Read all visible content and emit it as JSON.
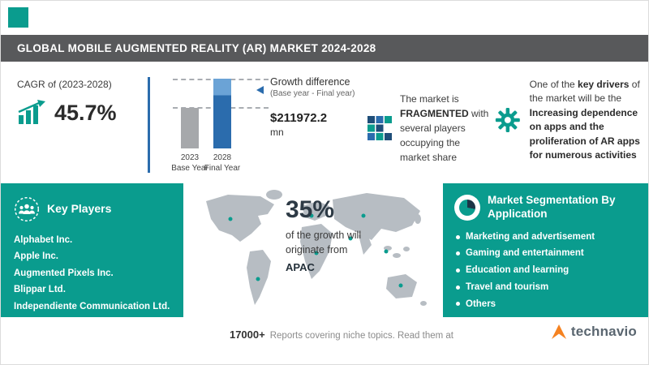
{
  "colors": {
    "teal": "#0a9c8e",
    "header_bg": "#58595b",
    "bar_gray": "#a6a8ab",
    "bar_blue": "#2b6cad",
    "bar_blue_light": "#6ba3d6",
    "orange": "#f58220",
    "wordmark": "#5a6670"
  },
  "header": {
    "title": "GLOBAL MOBILE AUGMENTED REALITY (AR) MARKET 2024-2028"
  },
  "cagr": {
    "label": "CAGR of (2023-2028)",
    "value": "45.7%"
  },
  "chart_data": {
    "type": "bar",
    "title": "Growth difference (Base year - Final year)",
    "categories": [
      "2023 Base Year",
      "2028 Final Year"
    ],
    "bars": [
      {
        "year": "2023",
        "label": "Base Year",
        "rel_height": 0.58
      },
      {
        "year": "2028",
        "label": "Final Year",
        "rel_height": 1.0
      }
    ],
    "growth_label": "Growth difference",
    "growth_sub": "(Base year - Final year)",
    "growth_value": "$211972.2",
    "growth_unit": "mn"
  },
  "fragmented": {
    "pre": "The market is ",
    "bold": "FRAGMENTED",
    "post": " with several players occupying the market share"
  },
  "key_driver": {
    "p1": "One of the ",
    "b1": "key drivers",
    "p2": " of the market will be the ",
    "b2": "Increasing dependence on apps and the proliferation of AR apps for numerous activities"
  },
  "key_players": {
    "title": "Key Players",
    "items": [
      "Alphabet Inc.",
      "Apple Inc.",
      "Augmented Pixels Inc.",
      "Blippar Ltd.",
      "Independiente Communication Ltd."
    ]
  },
  "apac": {
    "value": "35%",
    "text": "of the growth will originate from",
    "region": "APAC"
  },
  "segmentation": {
    "title": "Market Segmentation By Application",
    "items": [
      "Marketing and advertisement",
      "Gaming and entertainment",
      "Education and learning",
      "Travel and tourism",
      "Others"
    ]
  },
  "footer": {
    "count": "17000+",
    "note": "Reports covering niche topics. Read them at",
    "brand": "technavio"
  }
}
